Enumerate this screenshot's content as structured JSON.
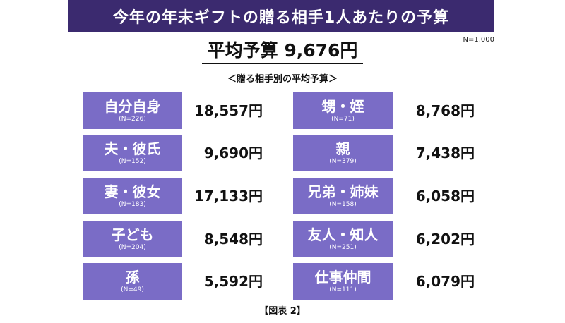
{
  "header": {
    "title": "今年の年末ギフトの贈る相手1人あたりの予算"
  },
  "sample_size": "N=1,000",
  "average": {
    "label": "平均予算 9,676円"
  },
  "subtitle": "＜贈る相手別の平均予算＞",
  "footer": "【図表 2】",
  "colors": {
    "header_bg": "#3b2a6f",
    "category_box": "#7a6cc6"
  },
  "chart_data": {
    "type": "table",
    "title": "今年の年末ギフトの贈る相手1人あたりの予算",
    "unit": "円",
    "items": [
      {
        "category": "自分自身",
        "n": "(N=226)",
        "value": 18557,
        "value_label": "18,557円"
      },
      {
        "category": "夫・彼氏",
        "n": "(N=152)",
        "value": 9690,
        "value_label": "9,690円"
      },
      {
        "category": "妻・彼女",
        "n": "(N=183)",
        "value": 17133,
        "value_label": "17,133円"
      },
      {
        "category": "子ども",
        "n": "(N=204)",
        "value": 8548,
        "value_label": "8,548円"
      },
      {
        "category": "孫",
        "n": "(N=49)",
        "value": 5592,
        "value_label": "5,592円"
      },
      {
        "category": "甥・姪",
        "n": "(N=71)",
        "value": 8768,
        "value_label": "8,768円"
      },
      {
        "category": "親",
        "n": "(N=379)",
        "value": 7438,
        "value_label": "7,438円"
      },
      {
        "category": "兄弟・姉妹",
        "n": "(N=158)",
        "value": 6058,
        "value_label": "6,058円"
      },
      {
        "category": "友人・知人",
        "n": "(N=251)",
        "value": 6202,
        "value_label": "6,202円"
      },
      {
        "category": "仕事仲間",
        "n": "(N=111)",
        "value": 6079,
        "value_label": "6,079円"
      }
    ]
  }
}
